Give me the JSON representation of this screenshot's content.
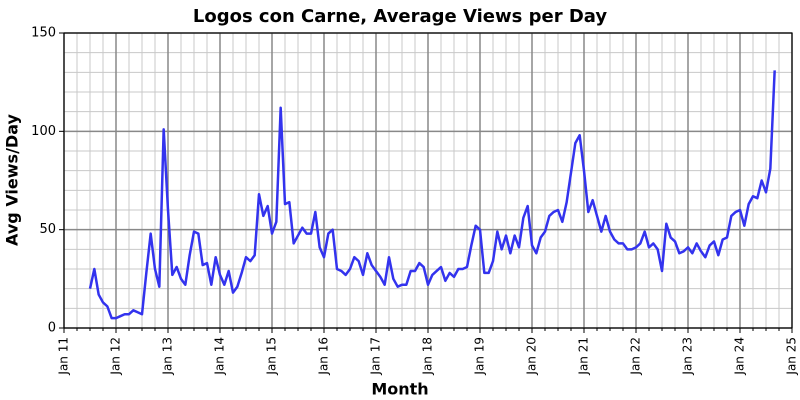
{
  "chart_data": {
    "type": "line",
    "title": "Logos con Carne, Average Views per Day",
    "xlabel": "Month",
    "ylabel": "Avg Views/Day",
    "xlim": [
      "2011-01",
      "2025-01"
    ],
    "ylim": [
      0,
      150
    ],
    "yticks": [
      0,
      50,
      100,
      150
    ],
    "xticks": [
      {
        "value": "2011-01",
        "label": "Jan 11"
      },
      {
        "value": "2012-01",
        "label": "Jan 12"
      },
      {
        "value": "2013-01",
        "label": "Jan 13"
      },
      {
        "value": "2014-01",
        "label": "Jan 14"
      },
      {
        "value": "2015-01",
        "label": "Jan 15"
      },
      {
        "value": "2016-01",
        "label": "Jan 16"
      },
      {
        "value": "2017-01",
        "label": "Jan 17"
      },
      {
        "value": "2018-01",
        "label": "Jan 18"
      },
      {
        "value": "2019-01",
        "label": "Jan 19"
      },
      {
        "value": "2020-01",
        "label": "Jan 20"
      },
      {
        "value": "2021-01",
        "label": "Jan 21"
      },
      {
        "value": "2022-01",
        "label": "Jan 22"
      },
      {
        "value": "2023-01",
        "label": "Jan 23"
      },
      {
        "value": "2024-01",
        "label": "Jan 24"
      },
      {
        "value": "2025-01",
        "label": "Jan 25"
      }
    ],
    "grid": true,
    "x": [
      "2011-07",
      "2011-08",
      "2011-09",
      "2011-10",
      "2011-11",
      "2011-12",
      "2012-01",
      "2012-02",
      "2012-03",
      "2012-04",
      "2012-05",
      "2012-06",
      "2012-07",
      "2012-08",
      "2012-09",
      "2012-10",
      "2012-11",
      "2012-12",
      "2013-01",
      "2013-02",
      "2013-03",
      "2013-04",
      "2013-05",
      "2013-06",
      "2013-07",
      "2013-08",
      "2013-09",
      "2013-10",
      "2013-11",
      "2013-12",
      "2014-01",
      "2014-02",
      "2014-03",
      "2014-04",
      "2014-05",
      "2014-06",
      "2014-07",
      "2014-08",
      "2014-09",
      "2014-10",
      "2014-11",
      "2014-12",
      "2015-01",
      "2015-02",
      "2015-03",
      "2015-04",
      "2015-05",
      "2015-06",
      "2015-07",
      "2015-08",
      "2015-09",
      "2015-10",
      "2015-11",
      "2015-12",
      "2016-01",
      "2016-02",
      "2016-03",
      "2016-04",
      "2016-05",
      "2016-06",
      "2016-07",
      "2016-08",
      "2016-09",
      "2016-10",
      "2016-11",
      "2016-12",
      "2017-01",
      "2017-02",
      "2017-03",
      "2017-04",
      "2017-05",
      "2017-06",
      "2017-07",
      "2017-08",
      "2017-09",
      "2017-10",
      "2017-11",
      "2017-12",
      "2018-01",
      "2018-02",
      "2018-03",
      "2018-04",
      "2018-05",
      "2018-06",
      "2018-07",
      "2018-08",
      "2018-09",
      "2018-10",
      "2018-11",
      "2018-12",
      "2019-01",
      "2019-02",
      "2019-03",
      "2019-04",
      "2019-05",
      "2019-06",
      "2019-07",
      "2019-08",
      "2019-09",
      "2019-10",
      "2019-11",
      "2019-12",
      "2020-01",
      "2020-02",
      "2020-03",
      "2020-04",
      "2020-05",
      "2020-06",
      "2020-07",
      "2020-08",
      "2020-09",
      "2020-10",
      "2020-11",
      "2020-12",
      "2021-01",
      "2021-02",
      "2021-03",
      "2021-04",
      "2021-05",
      "2021-06",
      "2021-07",
      "2021-08",
      "2021-09",
      "2021-10",
      "2021-11",
      "2021-12",
      "2022-01",
      "2022-02",
      "2022-03",
      "2022-04",
      "2022-05",
      "2022-06",
      "2022-07",
      "2022-08",
      "2022-09",
      "2022-10",
      "2022-11",
      "2022-12",
      "2023-01",
      "2023-02",
      "2023-03",
      "2023-04",
      "2023-05",
      "2023-06",
      "2023-07",
      "2023-08",
      "2023-09",
      "2023-10",
      "2023-11",
      "2023-12",
      "2024-01",
      "2024-02",
      "2024-03",
      "2024-04",
      "2024-05",
      "2024-06",
      "2024-07",
      "2024-08",
      "2024-09"
    ],
    "series": [
      {
        "color": "#3333ee",
        "values": [
          20,
          30,
          17,
          13,
          11,
          5,
          5,
          6,
          7,
          7,
          9,
          8,
          7,
          28,
          48,
          30,
          21,
          101,
          60,
          27,
          31,
          25,
          22,
          37,
          49,
          48,
          32,
          33,
          22,
          36,
          27,
          22,
          29,
          18,
          21,
          28,
          36,
          34,
          37,
          68,
          57,
          62,
          48,
          54,
          112,
          63,
          64,
          43,
          47,
          51,
          48,
          48,
          59,
          41,
          36,
          48,
          50,
          30,
          29,
          27,
          30,
          36,
          34,
          27,
          38,
          32,
          29,
          26,
          22,
          36,
          25,
          21,
          22,
          22,
          29,
          29,
          33,
          31,
          22,
          27,
          29,
          31,
          24,
          28,
          26,
          30,
          30,
          31,
          42,
          52,
          50,
          28,
          28,
          34,
          49,
          40,
          47,
          38,
          47,
          41,
          56,
          62,
          42,
          38,
          46,
          49,
          57,
          59,
          60,
          54,
          64,
          79,
          94,
          98,
          80,
          59,
          65,
          57,
          49,
          57,
          49,
          45,
          43,
          43,
          40,
          40,
          41,
          43,
          49,
          41,
          43,
          40,
          29,
          53,
          46,
          44,
          38,
          39,
          41,
          38,
          43,
          39,
          36,
          42,
          44,
          37,
          45,
          46,
          57,
          59,
          60,
          52,
          63,
          67,
          66,
          75,
          69,
          81,
          131
        ]
      }
    ]
  }
}
